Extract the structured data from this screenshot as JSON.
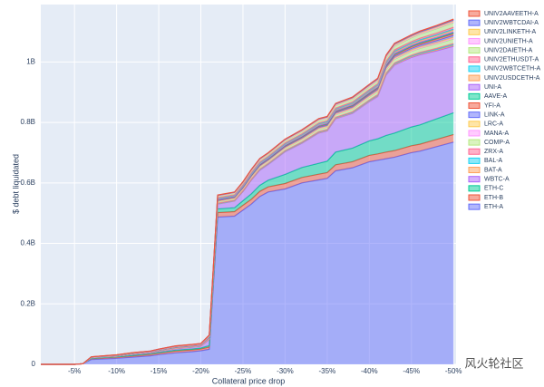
{
  "chart_data": {
    "type": "stacked-area",
    "x_label": "Collateral price drop",
    "y_label": "$ debt liquidated",
    "x": [
      -1,
      -5,
      -6,
      -7,
      -10,
      -12,
      -14,
      -15,
      -17,
      -19,
      -20,
      -21,
      -22,
      -24,
      -25,
      -26,
      -27,
      -28,
      -30,
      -32,
      -34,
      -35,
      -36,
      -38,
      -40,
      -41,
      -42,
      -43,
      -45,
      -46,
      -48,
      -50
    ],
    "xlim": [
      -1,
      -50.3
    ],
    "xticks": [
      {
        "value": -5,
        "label": "-5%"
      },
      {
        "value": -10,
        "label": "-10%"
      },
      {
        "value": -15,
        "label": "-15%"
      },
      {
        "value": -20,
        "label": "-20%"
      },
      {
        "value": -25,
        "label": "-25%"
      },
      {
        "value": -30,
        "label": "-30%"
      },
      {
        "value": -35,
        "label": "-35%"
      },
      {
        "value": -40,
        "label": "-40%"
      },
      {
        "value": -45,
        "label": "-45%"
      },
      {
        "value": -50,
        "label": "-50%"
      }
    ],
    "ylim": [
      0,
      1.19
    ],
    "yticks": [
      0,
      {
        "value": 0.2,
        "label": "0.2B"
      },
      {
        "value": 0.4,
        "label": "0.4B"
      },
      {
        "value": 0.6,
        "label": "0.6B"
      },
      {
        "value": 0.8,
        "label": "0.8B"
      },
      {
        "value": 1,
        "label": "1B"
      }
    ],
    "grid": true,
    "legend": "right",
    "background": "#e5ecf6",
    "watermark": "风火轮社区",
    "series": [
      {
        "name": "ETH-A",
        "color": "#636efa",
        "values": [
          0,
          0,
          0.002,
          0.016,
          0.02,
          0.024,
          0.028,
          0.032,
          0.038,
          0.042,
          0.045,
          0.05,
          0.487,
          0.49,
          0.51,
          0.53,
          0.555,
          0.57,
          0.58,
          0.6,
          0.61,
          0.615,
          0.64,
          0.65,
          0.67,
          0.675,
          0.68,
          0.685,
          0.7,
          0.705,
          0.72,
          0.735
        ]
      },
      {
        "name": "ETH-B",
        "color": "#EF553B",
        "values": [
          0,
          0,
          0,
          0.003,
          0.004,
          0.004,
          0.005,
          0.005,
          0.006,
          0.006,
          0.006,
          0.007,
          0.015,
          0.015,
          0.016,
          0.016,
          0.017,
          0.017,
          0.018,
          0.018,
          0.019,
          0.019,
          0.02,
          0.02,
          0.021,
          0.021,
          0.022,
          0.022,
          0.023,
          0.023,
          0.024,
          0.025
        ]
      },
      {
        "name": "ETH-C",
        "color": "#00cc96",
        "values": [
          0,
          0,
          0,
          0.001,
          0.001,
          0.002,
          0.002,
          0.002,
          0.003,
          0.003,
          0.003,
          0.005,
          0.012,
          0.013,
          0.015,
          0.018,
          0.02,
          0.022,
          0.03,
          0.033,
          0.036,
          0.038,
          0.042,
          0.045,
          0.048,
          0.05,
          0.055,
          0.058,
          0.062,
          0.064,
          0.068,
          0.072
        ]
      },
      {
        "name": "WBTC-A",
        "color": "#ab63fa",
        "values": [
          0,
          0,
          0,
          0.002,
          0.002,
          0.003,
          0.003,
          0.004,
          0.005,
          0.006,
          0.006,
          0.02,
          0.016,
          0.022,
          0.03,
          0.045,
          0.05,
          0.052,
          0.075,
          0.08,
          0.1,
          0.1,
          0.11,
          0.115,
          0.13,
          0.14,
          0.2,
          0.225,
          0.23,
          0.232,
          0.225,
          0.22
        ]
      },
      {
        "name": "BAT-A",
        "color": "#FFA15A",
        "values": [
          0,
          0,
          0,
          0.0001,
          0.00015,
          0.0002,
          0.0002,
          0.00025,
          0.0003,
          0.0003,
          0.0003,
          0.0005,
          0.001,
          0.001,
          0.0011,
          0.0012,
          0.0013,
          0.0013,
          0.0014,
          0.0015,
          0.0016,
          0.0016,
          0.0017,
          0.0018,
          0.0019,
          0.002,
          0.0022,
          0.0024,
          0.0025,
          0.0026,
          0.0028,
          0.003
        ]
      },
      {
        "name": "BAL-A",
        "color": "#19d3f3",
        "values": [
          0,
          0,
          0,
          0.0001,
          0.00015,
          0.0002,
          0.0002,
          0.00025,
          0.0003,
          0.0003,
          0.0003,
          0.0005,
          0.001,
          0.001,
          0.0011,
          0.0012,
          0.0013,
          0.0013,
          0.0014,
          0.0015,
          0.0016,
          0.0016,
          0.0017,
          0.0018,
          0.0019,
          0.002,
          0.0022,
          0.0024,
          0.0025,
          0.0026,
          0.0028,
          0.003
        ]
      },
      {
        "name": "ZRX-A",
        "color": "#FF6692",
        "values": [
          0,
          0,
          0,
          0.0001,
          0.00015,
          0.0002,
          0.0002,
          0.00025,
          0.0003,
          0.0003,
          0.0003,
          0.0005,
          0.001,
          0.001,
          0.0011,
          0.0012,
          0.0013,
          0.0013,
          0.0014,
          0.0015,
          0.0016,
          0.0016,
          0.0017,
          0.0018,
          0.0019,
          0.002,
          0.0022,
          0.0024,
          0.0025,
          0.0026,
          0.0028,
          0.003
        ]
      },
      {
        "name": "COMP-A",
        "color": "#B6E880",
        "values": [
          0,
          0,
          0,
          0.0005,
          0.00075,
          0.001,
          0.001,
          0.00125,
          0.0015,
          0.0015,
          0.0015,
          0.0025,
          0.005,
          0.005,
          0.0055,
          0.006,
          0.0065,
          0.0065,
          0.007,
          0.0075,
          0.008,
          0.008,
          0.0085,
          0.009,
          0.0095,
          0.01,
          0.011,
          0.012,
          0.0125,
          0.013,
          0.014,
          0.015
        ]
      },
      {
        "name": "MANA-A",
        "color": "#FF97FF",
        "values": [
          0,
          0,
          0,
          0.0001,
          0.00015,
          0.0002,
          0.0002,
          0.00025,
          0.0003,
          0.0003,
          0.0003,
          0.0005,
          0.001,
          0.001,
          0.0011,
          0.0012,
          0.0013,
          0.0013,
          0.0014,
          0.0015,
          0.0016,
          0.0016,
          0.0017,
          0.0018,
          0.0019,
          0.002,
          0.0022,
          0.0024,
          0.0025,
          0.0026,
          0.0028,
          0.003
        ]
      },
      {
        "name": "LRC-A",
        "color": "#FECB52",
        "values": [
          0,
          0,
          0,
          0.0001,
          0.00015,
          0.0002,
          0.0002,
          0.00025,
          0.0003,
          0.0003,
          0.0003,
          0.0005,
          0.001,
          0.001,
          0.0011,
          0.0012,
          0.0013,
          0.0013,
          0.0014,
          0.0015,
          0.0016,
          0.0016,
          0.0017,
          0.0018,
          0.0019,
          0.002,
          0.0022,
          0.0024,
          0.0025,
          0.0026,
          0.0028,
          0.003
        ]
      },
      {
        "name": "LINK-A",
        "color": "#636efa",
        "values": [
          0,
          0,
          0,
          0.0002,
          0.0003,
          0.0004,
          0.0004,
          0.0005,
          0.0006,
          0.0006,
          0.0006,
          0.001,
          0.002,
          0.002,
          0.0022,
          0.0024,
          0.0026,
          0.0026,
          0.0028,
          0.003,
          0.0032,
          0.0032,
          0.0034,
          0.0036,
          0.0038,
          0.004,
          0.0044,
          0.0048,
          0.005,
          0.0052,
          0.0056,
          0.006
        ]
      },
      {
        "name": "YFI-A",
        "color": "#EF553B",
        "values": [
          0,
          0,
          0,
          0.0002,
          0.0003,
          0.0004,
          0.0004,
          0.0005,
          0.0006,
          0.0006,
          0.0006,
          0.001,
          0.002,
          0.002,
          0.0022,
          0.0024,
          0.0026,
          0.0026,
          0.0028,
          0.003,
          0.0032,
          0.0032,
          0.0034,
          0.0036,
          0.0038,
          0.004,
          0.0044,
          0.0048,
          0.005,
          0.0052,
          0.0056,
          0.006
        ]
      },
      {
        "name": "AAVE-A",
        "color": "#00cc96",
        "values": [
          0,
          0,
          0,
          0.0001,
          0.00015,
          0.0002,
          0.0002,
          0.00025,
          0.0003,
          0.0003,
          0.0003,
          0.0005,
          0.001,
          0.001,
          0.0011,
          0.0012,
          0.0013,
          0.0013,
          0.0014,
          0.0015,
          0.0016,
          0.0016,
          0.0017,
          0.0018,
          0.0019,
          0.002,
          0.0022,
          0.0024,
          0.0025,
          0.0026,
          0.0028,
          0.003
        ]
      },
      {
        "name": "UNI-A",
        "color": "#ab63fa",
        "values": [
          0,
          0,
          0,
          0.0001,
          0.00015,
          0.0002,
          0.0002,
          0.00025,
          0.0003,
          0.0003,
          0.0003,
          0.0005,
          0.001,
          0.001,
          0.0011,
          0.0012,
          0.0013,
          0.0013,
          0.0014,
          0.0015,
          0.0016,
          0.0016,
          0.0017,
          0.0018,
          0.0019,
          0.002,
          0.0022,
          0.0024,
          0.0025,
          0.0026,
          0.0028,
          0.003
        ]
      },
      {
        "name": "UNIV2USDCETH-A",
        "color": "#FFA15A",
        "values": [
          0,
          0,
          0,
          0.0002,
          0.0003,
          0.0004,
          0.0004,
          0.0005,
          0.0006,
          0.0006,
          0.0006,
          0.001,
          0.002,
          0.002,
          0.0022,
          0.0024,
          0.0026,
          0.0026,
          0.0028,
          0.003,
          0.0032,
          0.0032,
          0.0034,
          0.0036,
          0.0038,
          0.004,
          0.0044,
          0.0048,
          0.005,
          0.0052,
          0.0056,
          0.006
        ]
      },
      {
        "name": "UNIV2WBTCETH-A",
        "color": "#19d3f3",
        "values": [
          0,
          0,
          0,
          0.0001,
          0.00015,
          0.0002,
          0.0002,
          0.00025,
          0.0003,
          0.0003,
          0.0003,
          0.0005,
          0.001,
          0.001,
          0.0011,
          0.0012,
          0.0013,
          0.0013,
          0.0014,
          0.0015,
          0.0016,
          0.0016,
          0.0017,
          0.0018,
          0.0019,
          0.002,
          0.0022,
          0.0024,
          0.0025,
          0.0026,
          0.0028,
          0.003
        ]
      },
      {
        "name": "UNIV2ETHUSDT-A",
        "color": "#FF6692",
        "values": [
          0,
          0,
          0,
          0.0002,
          0.0003,
          0.0004,
          0.0004,
          0.0005,
          0.0006,
          0.0006,
          0.0006,
          0.001,
          0.002,
          0.002,
          0.0022,
          0.0024,
          0.0026,
          0.0026,
          0.0028,
          0.003,
          0.0032,
          0.0032,
          0.0034,
          0.0036,
          0.0038,
          0.004,
          0.0044,
          0.0048,
          0.005,
          0.0052,
          0.0056,
          0.006
        ]
      },
      {
        "name": "UNIV2DAIETH-A",
        "color": "#B6E880",
        "values": [
          0,
          0,
          0,
          0.0005,
          0.00075,
          0.001,
          0.001,
          0.00125,
          0.0015,
          0.0015,
          0.0015,
          0.0025,
          0.005,
          0.005,
          0.0055,
          0.006,
          0.0065,
          0.0065,
          0.007,
          0.0075,
          0.008,
          0.008,
          0.0085,
          0.009,
          0.0095,
          0.01,
          0.011,
          0.012,
          0.0125,
          0.013,
          0.014,
          0.015
        ]
      },
      {
        "name": "UNIV2UNIETH-A",
        "color": "#FF97FF",
        "values": [
          0,
          0,
          0,
          0.0001,
          0.00015,
          0.0002,
          0.0002,
          0.00025,
          0.0003,
          0.0003,
          0.0003,
          0.0005,
          0.001,
          0.001,
          0.0011,
          0.0012,
          0.0013,
          0.0013,
          0.0014,
          0.0015,
          0.0016,
          0.0016,
          0.0017,
          0.0018,
          0.0019,
          0.002,
          0.0022,
          0.0024,
          0.0025,
          0.0026,
          0.0028,
          0.003
        ]
      },
      {
        "name": "UNIV2LINKETH-A",
        "color": "#FECB52",
        "values": [
          0,
          0,
          0,
          0.0001,
          0.00015,
          0.0002,
          0.0002,
          0.00025,
          0.0003,
          0.0003,
          0.0003,
          0.0005,
          0.001,
          0.001,
          0.0011,
          0.0012,
          0.0013,
          0.0013,
          0.0014,
          0.0015,
          0.0016,
          0.0016,
          0.0017,
          0.0018,
          0.0019,
          0.002,
          0.0022,
          0.0024,
          0.0025,
          0.0026,
          0.0028,
          0.003
        ]
      },
      {
        "name": "UNIV2WBTCDAI-A",
        "color": "#636efa",
        "values": [
          0,
          0,
          0,
          0.0001,
          0.00015,
          0.0002,
          0.0002,
          0.00025,
          0.0003,
          0.0003,
          0.0003,
          0.0005,
          0.001,
          0.001,
          0.0011,
          0.0012,
          0.0013,
          0.0013,
          0.0014,
          0.0015,
          0.0016,
          0.0016,
          0.0017,
          0.0018,
          0.0019,
          0.002,
          0.0022,
          0.0024,
          0.0025,
          0.0026,
          0.0028,
          0.003
        ]
      },
      {
        "name": "UNIV2AAVEETH-A",
        "color": "#EF553B",
        "values": [
          0,
          0,
          0,
          0.0001,
          0.00015,
          0.0002,
          0.0002,
          0.00025,
          0.0003,
          0.0003,
          0.0003,
          0.0005,
          0.001,
          0.001,
          0.0011,
          0.0012,
          0.0013,
          0.0013,
          0.0014,
          0.0015,
          0.0016,
          0.0016,
          0.0017,
          0.0018,
          0.0019,
          0.002,
          0.0022,
          0.0024,
          0.0025,
          0.0026,
          0.0028,
          0.003
        ]
      }
    ]
  }
}
